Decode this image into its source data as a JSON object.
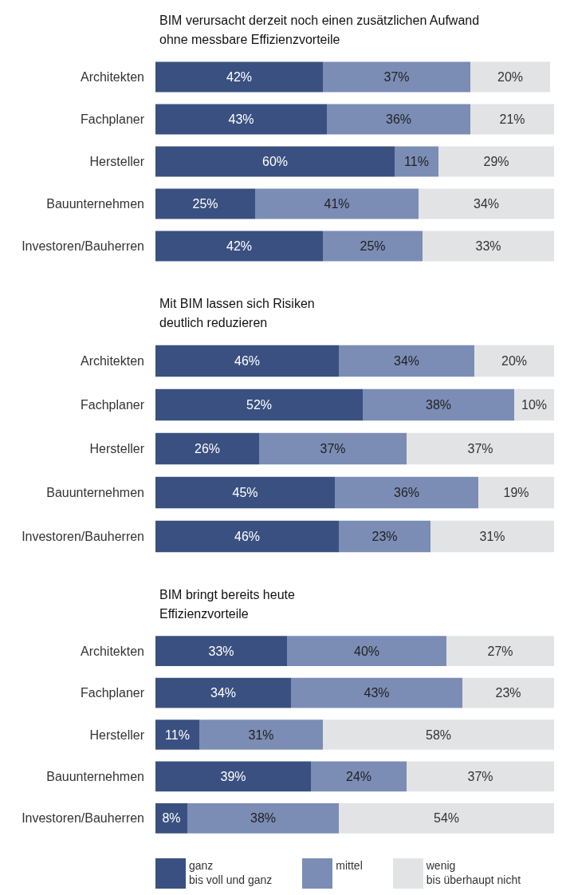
{
  "chart_data": [
    {
      "type": "bar",
      "orientation": "horizontal",
      "stacked": true,
      "title": "BIM verursacht derzeit noch einen zusätzlichen Aufwand\nohne messbare Effizienzvorteile",
      "categories": [
        "Architekten",
        "Fachplaner",
        "Hersteller",
        "Bauunternehmen",
        "Investoren/Bauherren"
      ],
      "xlim": [
        0,
        100
      ],
      "tick_labels": "y",
      "legend": false,
      "series": [
        {
          "color": "#3a5080",
          "values": [
            42,
            43,
            60,
            25,
            42
          ],
          "value_labels": [
            "42%",
            "43%",
            "60%",
            "25%",
            "42%"
          ]
        },
        {
          "color": "#7b8db5",
          "values": [
            37,
            36,
            11,
            41,
            25
          ],
          "value_labels": [
            "37%",
            "36%",
            "11%",
            "41%",
            "25%"
          ]
        },
        {
          "color": "#e2e3e5",
          "values": [
            20,
            21,
            29,
            34,
            33
          ],
          "value_labels": [
            "20%",
            "21%",
            "29%",
            "34%",
            "33%"
          ]
        }
      ]
    },
    {
      "type": "bar",
      "orientation": "horizontal",
      "stacked": true,
      "title": "Mit BIM lassen sich Risiken\ndeutlich reduzieren",
      "categories": [
        "Architekten",
        "Fachplaner",
        "Hersteller",
        "Bauunternehmen",
        "Investoren/Bauherren"
      ],
      "xlim": [
        0,
        100
      ],
      "tick_labels": "y",
      "legend": false,
      "series": [
        {
          "color": "#3a5080",
          "values": [
            46,
            52,
            26,
            45,
            46
          ],
          "value_labels": [
            "46%",
            "52%",
            "26%",
            "45%",
            "46%"
          ]
        },
        {
          "color": "#7b8db5",
          "values": [
            34,
            38,
            37,
            36,
            23
          ],
          "value_labels": [
            "34%",
            "38%",
            "37%",
            "36%",
            "23%"
          ]
        },
        {
          "color": "#e2e3e5",
          "values": [
            20,
            10,
            37,
            19,
            31
          ],
          "value_labels": [
            "20%",
            "10%",
            "37%",
            "19%",
            "31%"
          ]
        }
      ]
    },
    {
      "type": "bar",
      "orientation": "horizontal",
      "stacked": true,
      "title": "BIM bringt bereits heute\nEffizienzvorteile",
      "categories": [
        "Architekten",
        "Fachplaner",
        "Hersteller",
        "Bauunternehmen",
        "Investoren/Bauherren"
      ],
      "xlim": [
        0,
        100
      ],
      "tick_labels": "y",
      "legend": "bottom",
      "series": [
        {
          "name": "ganz\nbis voll und ganz",
          "color": "#3a5080",
          "values": [
            33,
            34,
            11,
            39,
            8
          ],
          "value_labels": [
            "33%",
            "34%",
            "11%",
            "39%",
            "8%"
          ]
        },
        {
          "name": "mittel",
          "color": "#7b8db5",
          "values": [
            40,
            43,
            31,
            24,
            38
          ],
          "value_labels": [
            "40%",
            "43%",
            "31%",
            "24%",
            "38%"
          ]
        },
        {
          "name": "wenig\nbis überhaupt nicht",
          "color": "#e2e3e5",
          "values": [
            27,
            23,
            58,
            37,
            54
          ],
          "value_labels": [
            "27%",
            "23%",
            "58%",
            "37%",
            "54%"
          ]
        }
      ]
    }
  ]
}
